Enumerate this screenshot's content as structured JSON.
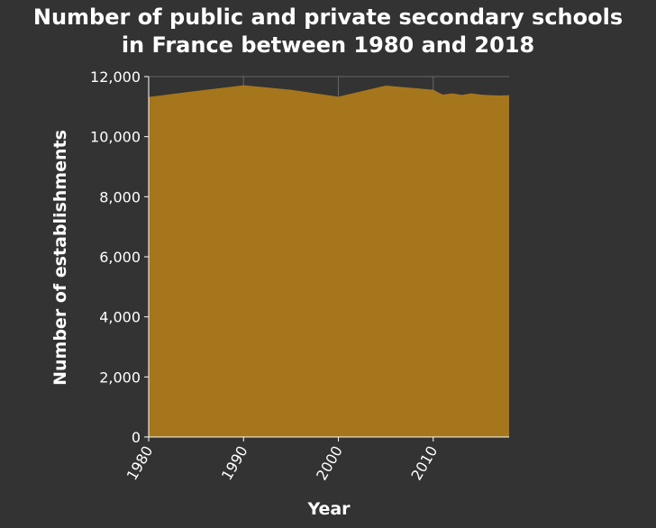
{
  "title_line1": "Number of public and private secondary schools",
  "title_line2": "in France between 1980 and 2018",
  "colors": {
    "background": "#333333",
    "fill": "#a6761d",
    "text": "#ffffff",
    "grid": "#666666"
  },
  "chart_data": {
    "type": "area",
    "xlabel": "Year",
    "ylabel": "Number of establishments",
    "xlim": [
      1980,
      2018
    ],
    "ylim": [
      0,
      12000
    ],
    "x_ticks": [
      1980,
      1990,
      2000,
      2010
    ],
    "x_tick_labels": [
      "1980",
      "1990",
      "2000",
      "2010"
    ],
    "y_ticks": [
      0,
      2000,
      4000,
      6000,
      8000,
      10000,
      12000
    ],
    "y_tick_labels": [
      "0",
      "2,000",
      "4,000",
      "6,000",
      "8,000",
      "10,000",
      "12,000"
    ],
    "grid": true,
    "series": [
      {
        "x": [
          1980,
          1985,
          1990,
          1995,
          2000,
          2005,
          2010,
          2011,
          2012,
          2013,
          2014,
          2015,
          2016,
          2017,
          2018
        ],
        "y": [
          11320,
          11520,
          11710,
          11560,
          11330,
          11700,
          11560,
          11400,
          11440,
          11390,
          11440,
          11400,
          11380,
          11370,
          11380
        ]
      }
    ]
  }
}
